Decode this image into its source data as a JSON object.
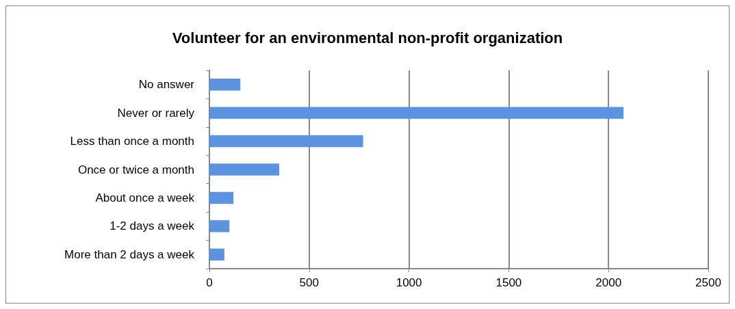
{
  "chart_data": {
    "type": "bar",
    "orientation": "horizontal",
    "title": "Volunteer for an environmental non-profit organization",
    "categories": [
      "No answer",
      "Never or rarely",
      "Less than once a month",
      "Once or twice a month",
      "About once a week",
      "1-2 days a week",
      "More than 2 days a week"
    ],
    "values": [
      155,
      2075,
      770,
      350,
      120,
      100,
      75
    ],
    "color": "#5b93e0",
    "xlim": [
      0,
      2500
    ],
    "xticks": [
      0,
      500,
      1000,
      1500,
      2000,
      2500
    ],
    "grid": "x"
  }
}
